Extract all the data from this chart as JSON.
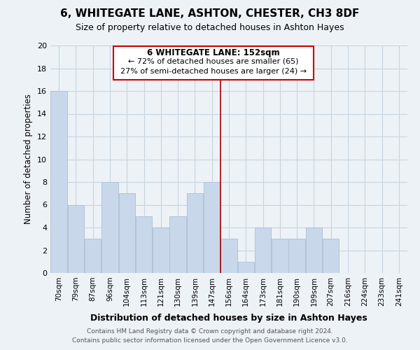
{
  "title": "6, WHITEGATE LANE, ASHTON, CHESTER, CH3 8DF",
  "subtitle": "Size of property relative to detached houses in Ashton Hayes",
  "xlabel": "Distribution of detached houses by size in Ashton Hayes",
  "ylabel": "Number of detached properties",
  "bar_color": "#c8d8ea",
  "bar_edge_color": "#b0c4d8",
  "grid_color": "#c8d4de",
  "background_color": "#edf2f7",
  "annotation_box_color": "#ffffff",
  "annotation_border_color": "#cc0000",
  "vline_color": "#aa0000",
  "bins": [
    "70sqm",
    "79sqm",
    "87sqm",
    "96sqm",
    "104sqm",
    "113sqm",
    "121sqm",
    "130sqm",
    "139sqm",
    "147sqm",
    "156sqm",
    "164sqm",
    "173sqm",
    "181sqm",
    "190sqm",
    "199sqm",
    "207sqm",
    "216sqm",
    "224sqm",
    "233sqm",
    "241sqm"
  ],
  "values": [
    16,
    6,
    3,
    8,
    7,
    5,
    4,
    5,
    7,
    8,
    3,
    1,
    4,
    3,
    3,
    4,
    3,
    0,
    0,
    0,
    0
  ],
  "ylim": [
    0,
    20
  ],
  "yticks": [
    0,
    2,
    4,
    6,
    8,
    10,
    12,
    14,
    16,
    18,
    20
  ],
  "vline_position": 9.5,
  "annotation_title": "6 WHITEGATE LANE: 152sqm",
  "annotation_line1": "← 72% of detached houses are smaller (65)",
  "annotation_line2": "27% of semi-detached houses are larger (24) →",
  "footer1": "Contains HM Land Registry data © Crown copyright and database right 2024.",
  "footer2": "Contains public sector information licensed under the Open Government Licence v3.0."
}
